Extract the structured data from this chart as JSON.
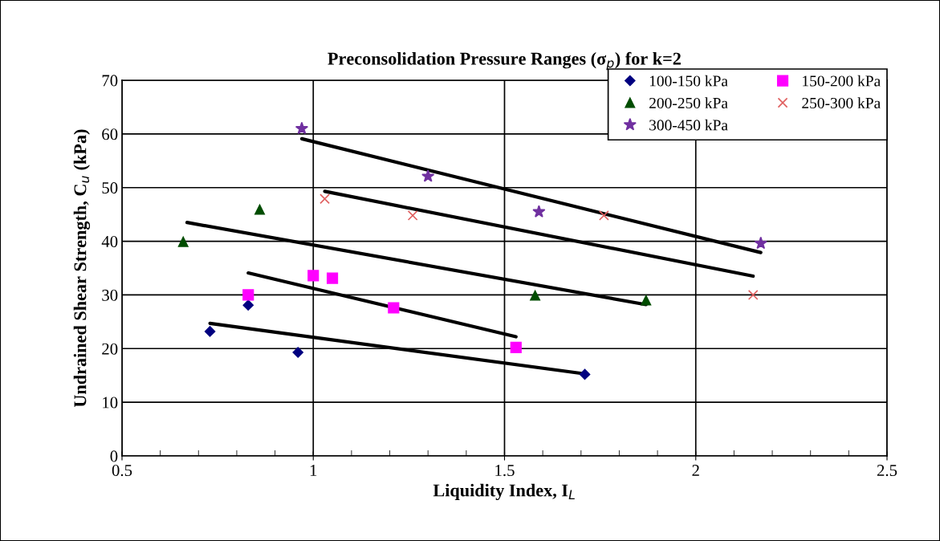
{
  "chart_data": {
    "type": "scatter",
    "title": "Preconsolidation Pressure Ranges (σ$_{p}$) for k=2",
    "xlabel": "Liquidity Index, I$_{L}$",
    "ylabel": "Undrained Shear Strength, C$_{u}$ (kPa)",
    "xlim": [
      0.5,
      2.5
    ],
    "xticks": [
      0.5,
      1,
      1.5,
      2,
      2.5
    ],
    "ylim": [
      0,
      70
    ],
    "yticks": [
      0,
      10,
      20,
      30,
      40,
      50,
      60,
      70
    ],
    "grid": true,
    "legend": "top right",
    "series": [
      {
        "name": "100-150 kPa",
        "color": "#000080",
        "marker": "diamond",
        "x": [
          0.73,
          0.83,
          0.96,
          1.71
        ],
        "values": [
          23.2,
          28.1,
          19.3,
          15.2
        ]
      },
      {
        "name": "150-200 kPa",
        "color": "#ff00ff",
        "marker": "square",
        "x": [
          0.83,
          1.0,
          1.05,
          1.21,
          1.53
        ],
        "values": [
          30.0,
          33.6,
          33.1,
          27.6,
          20.2
        ]
      },
      {
        "name": "200-250 kPa",
        "color": "#004d00",
        "marker": "triangle",
        "x": [
          0.66,
          0.86,
          1.58,
          1.87
        ],
        "values": [
          39.9,
          45.9,
          29.9,
          29.0
        ]
      },
      {
        "name": "250-300 kPa",
        "color": "#e06060",
        "marker": "cross",
        "x": [
          1.03,
          1.26,
          1.76,
          2.15
        ],
        "values": [
          47.9,
          44.8,
          44.8,
          30.0
        ]
      },
      {
        "name": "300-450 kPa",
        "color": "#7030a0",
        "marker": "star",
        "x": [
          0.97,
          1.3,
          1.59,
          2.17
        ],
        "values": [
          61.0,
          52.1,
          45.5,
          39.6
        ]
      },
      {
        "type": "line",
        "color": "#000000",
        "marker": "none",
        "line_style": "solid",
        "x": [
          0.73,
          1.71
        ],
        "values": [
          24.7,
          15.3
        ]
      },
      {
        "type": "line",
        "color": "#000000",
        "marker": "none",
        "line_style": "solid",
        "x": [
          0.83,
          1.53
        ],
        "values": [
          34.1,
          22.2
        ]
      },
      {
        "type": "line",
        "color": "#000000",
        "marker": "none",
        "line_style": "solid",
        "x": [
          0.67,
          1.87
        ],
        "values": [
          43.5,
          28.2
        ]
      },
      {
        "type": "line",
        "color": "#000000",
        "marker": "none",
        "line_style": "solid",
        "x": [
          1.03,
          2.15
        ],
        "values": [
          49.3,
          33.5
        ]
      },
      {
        "type": "line",
        "color": "#000000",
        "marker": "none",
        "line_style": "solid",
        "x": [
          0.97,
          2.17
        ],
        "values": [
          59.1,
          37.9
        ]
      }
    ]
  }
}
